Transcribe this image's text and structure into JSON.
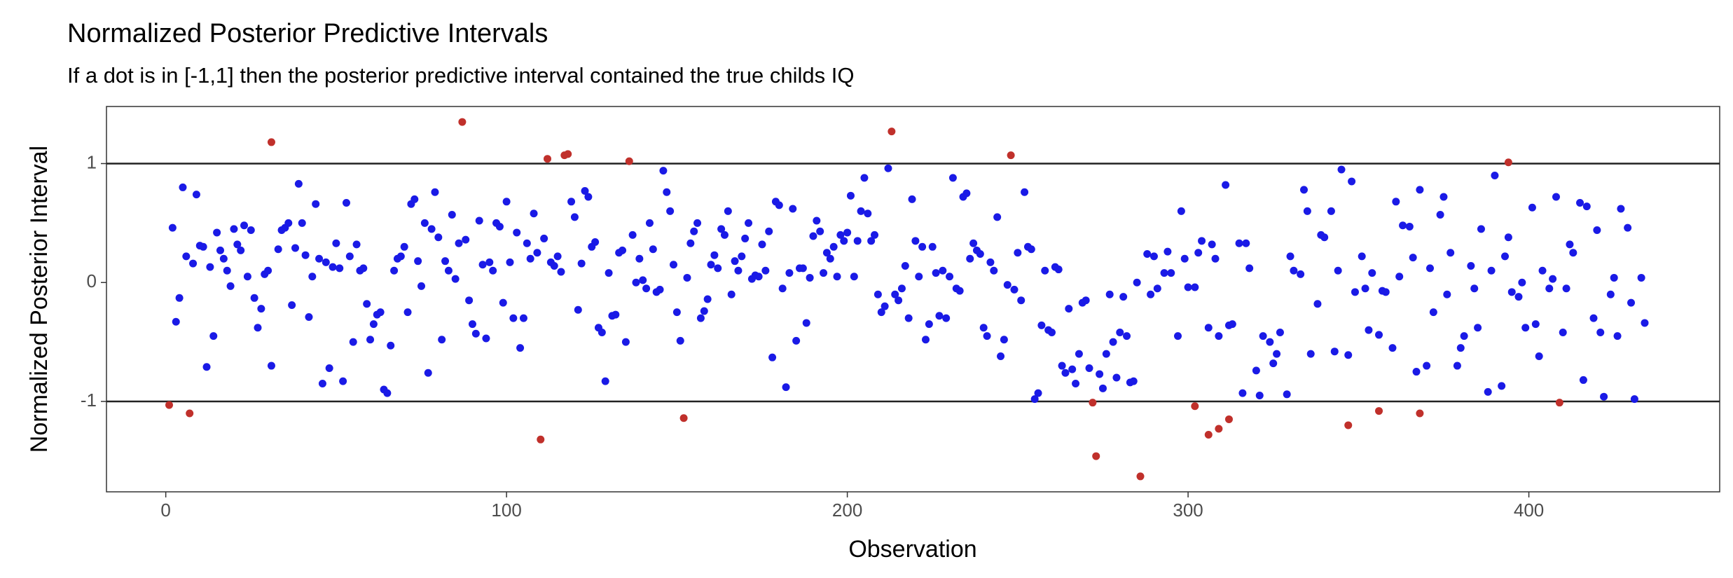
{
  "chart_data": {
    "type": "scatter",
    "title": "Normalized Posterior Predictive Intervals",
    "subtitle": "If a dot is in [-1,1] then the posterior predictive interval contained the true childs IQ",
    "xlabel": "Observation",
    "ylabel": "Normalized Posterior Interval",
    "xlim": [
      -17.4,
      456
    ],
    "ylim": [
      -1.76,
      1.48
    ],
    "xticks": [
      0,
      100,
      200,
      300,
      400
    ],
    "yticks": [
      -1,
      0,
      1
    ],
    "hlines": [
      1,
      -1
    ],
    "grid": false,
    "series": [
      {
        "color": "#1a1ae6",
        "x": [
          2,
          3,
          4,
          5,
          6,
          8,
          9,
          10,
          11,
          12,
          13,
          14,
          15,
          16,
          17,
          18,
          19,
          20,
          21,
          22,
          23,
          24,
          25,
          26,
          27,
          28,
          29,
          30,
          31,
          33,
          34,
          35,
          36,
          37,
          38,
          39,
          40,
          41,
          42,
          43,
          44,
          45,
          46,
          47,
          48,
          49,
          50,
          51,
          52,
          53,
          54,
          55,
          56,
          57,
          58,
          59,
          60,
          61,
          62,
          63,
          64,
          65,
          66,
          67,
          68,
          69,
          70,
          71,
          72,
          73,
          74,
          75,
          76,
          77,
          78,
          79,
          80,
          81,
          82,
          83,
          84,
          85,
          86,
          88,
          89,
          90,
          91,
          92,
          93,
          94,
          95,
          96,
          97,
          98,
          99,
          100,
          101,
          102,
          103,
          104,
          105,
          106,
          107,
          108,
          109,
          111,
          113,
          114,
          115,
          116,
          119,
          120,
          121,
          122,
          123,
          124,
          125,
          126,
          127,
          128,
          129,
          130,
          131,
          132,
          133,
          134,
          135,
          137,
          138,
          139,
          140,
          141,
          142,
          143,
          144,
          145,
          146,
          147,
          148,
          149,
          150,
          151,
          153,
          154,
          155,
          156,
          157,
          158,
          159,
          160,
          161,
          162,
          163,
          164,
          165,
          166,
          167,
          168,
          169,
          170,
          171,
          172,
          173,
          174,
          175,
          176,
          177,
          178,
          179,
          180,
          181,
          182,
          183,
          184,
          185,
          186,
          187,
          188,
          189,
          190,
          191,
          192,
          193,
          194,
          195,
          196,
          197,
          198,
          199,
          200,
          201,
          202,
          203,
          204,
          205,
          206,
          207,
          208,
          209,
          210,
          211,
          212,
          214,
          215,
          216,
          217,
          218,
          219,
          220,
          221,
          222,
          223,
          224,
          225,
          226,
          227,
          228,
          229,
          230,
          231,
          232,
          233,
          234,
          235,
          236,
          237,
          238,
          239,
          240,
          241,
          242,
          243,
          244,
          245,
          246,
          247,
          249,
          250,
          251,
          252,
          253,
          254,
          255,
          256,
          257,
          258,
          259,
          260,
          261,
          262,
          263,
          264,
          265,
          266,
          267,
          268,
          269,
          270,
          271,
          274,
          275,
          276,
          277,
          278,
          279,
          280,
          281,
          282,
          283,
          284,
          285,
          288,
          289,
          290,
          291,
          293,
          294,
          295,
          297,
          298,
          299,
          300,
          302,
          303,
          304,
          306,
          307,
          308,
          309,
          311,
          312,
          313,
          315,
          316,
          317,
          318,
          320,
          321,
          322,
          324,
          325,
          326,
          327,
          329,
          330,
          331,
          333,
          334,
          335,
          336,
          338,
          339,
          340,
          342,
          343,
          344,
          345,
          347,
          348,
          349,
          351,
          352,
          353,
          354,
          356,
          357,
          358,
          360,
          361,
          362,
          363,
          365,
          366,
          367,
          368,
          370,
          371,
          372,
          374,
          375,
          376,
          377,
          379,
          380,
          381,
          383,
          384,
          385,
          386,
          388,
          389,
          390,
          392,
          393,
          394,
          395,
          397,
          398,
          399,
          401,
          402,
          403,
          404,
          406,
          407,
          408,
          410,
          411,
          412,
          413,
          415,
          416,
          417,
          419,
          420,
          421,
          422,
          424,
          425,
          426,
          427,
          429,
          430,
          431,
          433,
          434
        ],
        "values": [
          0.46,
          -0.33,
          -0.13,
          0.8,
          0.22,
          0.16,
          0.74,
          0.31,
          0.3,
          -0.71,
          0.13,
          -0.45,
          0.42,
          0.27,
          0.2,
          0.1,
          -0.03,
          0.45,
          0.32,
          0.27,
          0.48,
          0.05,
          0.44,
          -0.13,
          -0.38,
          -0.22,
          0.07,
          0.1,
          -0.7,
          0.28,
          0.44,
          0.46,
          0.5,
          -0.19,
          0.29,
          0.83,
          0.5,
          0.23,
          -0.29,
          0.05,
          0.66,
          0.2,
          -0.85,
          0.17,
          -0.72,
          0.13,
          0.33,
          0.12,
          -0.83,
          0.67,
          0.22,
          -0.5,
          0.32,
          0.1,
          0.12,
          -0.18,
          -0.48,
          -0.35,
          -0.27,
          -0.25,
          -0.9,
          -0.93,
          -0.53,
          0.1,
          0.2,
          0.22,
          0.3,
          -0.25,
          0.66,
          0.7,
          0.18,
          -0.03,
          0.5,
          -0.76,
          0.45,
          0.76,
          0.38,
          -0.48,
          0.18,
          0.1,
          0.57,
          0.03,
          0.33,
          0.36,
          -0.15,
          -0.35,
          -0.43,
          0.52,
          0.15,
          -0.47,
          0.17,
          0.1,
          0.5,
          0.47,
          -0.17,
          0.68,
          0.17,
          -0.3,
          0.42,
          -0.55,
          -0.3,
          0.33,
          0.2,
          0.58,
          0.25,
          0.37,
          0.17,
          0.14,
          0.22,
          0.09,
          0.68,
          0.55,
          -0.23,
          0.16,
          0.77,
          0.72,
          0.3,
          0.34,
          -0.38,
          -0.42,
          -0.83,
          0.08,
          -0.28,
          -0.27,
          0.25,
          0.27,
          -0.5,
          0.4,
          0.0,
          0.2,
          0.02,
          -0.05,
          0.5,
          0.28,
          -0.08,
          -0.06,
          0.94,
          0.76,
          0.6,
          0.15,
          -0.25,
          -0.49,
          0.04,
          0.33,
          0.43,
          0.5,
          -0.3,
          -0.24,
          -0.14,
          0.15,
          0.23,
          0.12,
          0.45,
          0.4,
          0.6,
          -0.1,
          0.18,
          0.1,
          0.22,
          0.37,
          0.5,
          0.03,
          0.06,
          0.05,
          0.32,
          0.1,
          0.43,
          -0.63,
          0.68,
          0.65,
          -0.05,
          -0.88,
          0.08,
          0.62,
          -0.49,
          0.12,
          0.12,
          -0.34,
          0.04,
          0.39,
          0.52,
          0.43,
          0.08,
          0.25,
          0.2,
          0.3,
          0.05,
          0.4,
          0.35,
          0.42,
          0.73,
          0.05,
          0.35,
          0.6,
          0.88,
          0.58,
          0.35,
          0.4,
          -0.1,
          -0.25,
          -0.2,
          0.96,
          -0.1,
          -0.15,
          -0.05,
          0.14,
          -0.3,
          0.7,
          0.35,
          0.05,
          0.3,
          -0.48,
          -0.35,
          0.3,
          0.08,
          -0.28,
          0.1,
          -0.3,
          0.05,
          0.88,
          -0.05,
          -0.07,
          0.72,
          0.75,
          0.2,
          0.33,
          0.27,
          0.24,
          -0.38,
          -0.45,
          0.17,
          0.1,
          0.55,
          -0.62,
          -0.48,
          -0.02,
          -0.06,
          0.25,
          -0.15,
          0.76,
          0.3,
          0.28,
          -0.98,
          -0.93,
          -0.36,
          0.1,
          -0.4,
          -0.42,
          0.13,
          0.11,
          -0.7,
          -0.76,
          -0.22,
          -0.73,
          -0.85,
          -0.6,
          -0.17,
          -0.15,
          -0.72,
          -0.77,
          -0.89,
          -0.6,
          -0.1,
          -0.5,
          -0.8,
          -0.42,
          -0.12,
          -0.45,
          -0.84,
          -0.83,
          0.0,
          0.24,
          -0.1,
          0.22,
          -0.05,
          0.08,
          0.26,
          0.08,
          -0.45,
          0.6,
          0.2,
          -0.04,
          -0.04,
          0.25,
          0.35,
          -0.38,
          0.32,
          0.2,
          -0.45,
          0.82,
          -0.36,
          -0.35,
          0.33,
          -0.93,
          0.33,
          0.12,
          -0.74,
          -0.95,
          -0.45,
          -0.5,
          -0.68,
          -0.6,
          -0.42,
          -0.94,
          0.22,
          0.1,
          0.07,
          0.78,
          0.6,
          -0.6,
          -0.18,
          0.4,
          0.38,
          0.6,
          -0.58,
          0.1,
          0.95,
          -0.61,
          0.85,
          -0.08,
          0.22,
          -0.05,
          -0.4,
          0.08,
          -0.44,
          -0.07,
          -0.08,
          -0.55,
          0.68,
          0.05,
          0.48,
          0.47,
          0.21,
          -0.75,
          0.78,
          -0.7,
          0.12,
          -0.25,
          0.57,
          0.72,
          -0.1,
          0.25,
          -0.7,
          -0.55,
          -0.45,
          0.14,
          -0.05,
          -0.38,
          0.45,
          -0.92,
          0.1,
          0.9,
          -0.87,
          0.22,
          0.38,
          -0.08,
          -0.12,
          0.0,
          -0.38,
          0.63,
          -0.35,
          -0.62,
          0.1,
          -0.05,
          0.03,
          0.72,
          -0.42,
          -0.05,
          0.32,
          0.25,
          0.67,
          -0.82,
          0.64,
          -0.3,
          0.44,
          -0.42,
          -0.96,
          -0.1,
          0.04,
          -0.45,
          0.62,
          0.46,
          -0.17,
          -0.98,
          0.04,
          -0.34
        ]
      },
      {
        "color": "#c0302b",
        "x": [
          1,
          7,
          31,
          87,
          110,
          112,
          117,
          118,
          136,
          152,
          213,
          248,
          272,
          273,
          286,
          302,
          306,
          309,
          312,
          347,
          356,
          368,
          394,
          409
        ],
        "values": [
          -1.03,
          -1.1,
          1.18,
          1.35,
          -1.32,
          1.04,
          1.07,
          1.08,
          1.02,
          -1.14,
          1.27,
          1.07,
          -1.01,
          -1.46,
          -1.63,
          -1.04,
          -1.28,
          -1.23,
          -1.15,
          -1.2,
          -1.08,
          -1.1,
          1.01,
          -1.01
        ]
      }
    ]
  }
}
